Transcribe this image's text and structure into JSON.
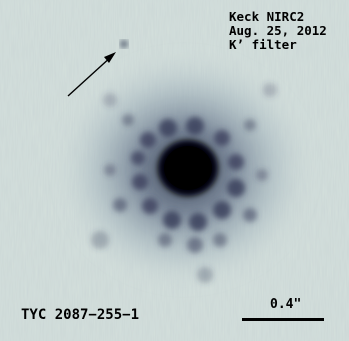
{
  "caption": {
    "line1": "Keck NIRC2",
    "line2": "Aug. 25, 2012",
    "line3": "K’ filter"
  },
  "target_name": "TYC 2087−255−1",
  "scale_bar_label": "0.4\"",
  "colors": {
    "background": "#d4e0dc",
    "core": "#000000",
    "halo": "#3a4a5a"
  }
}
